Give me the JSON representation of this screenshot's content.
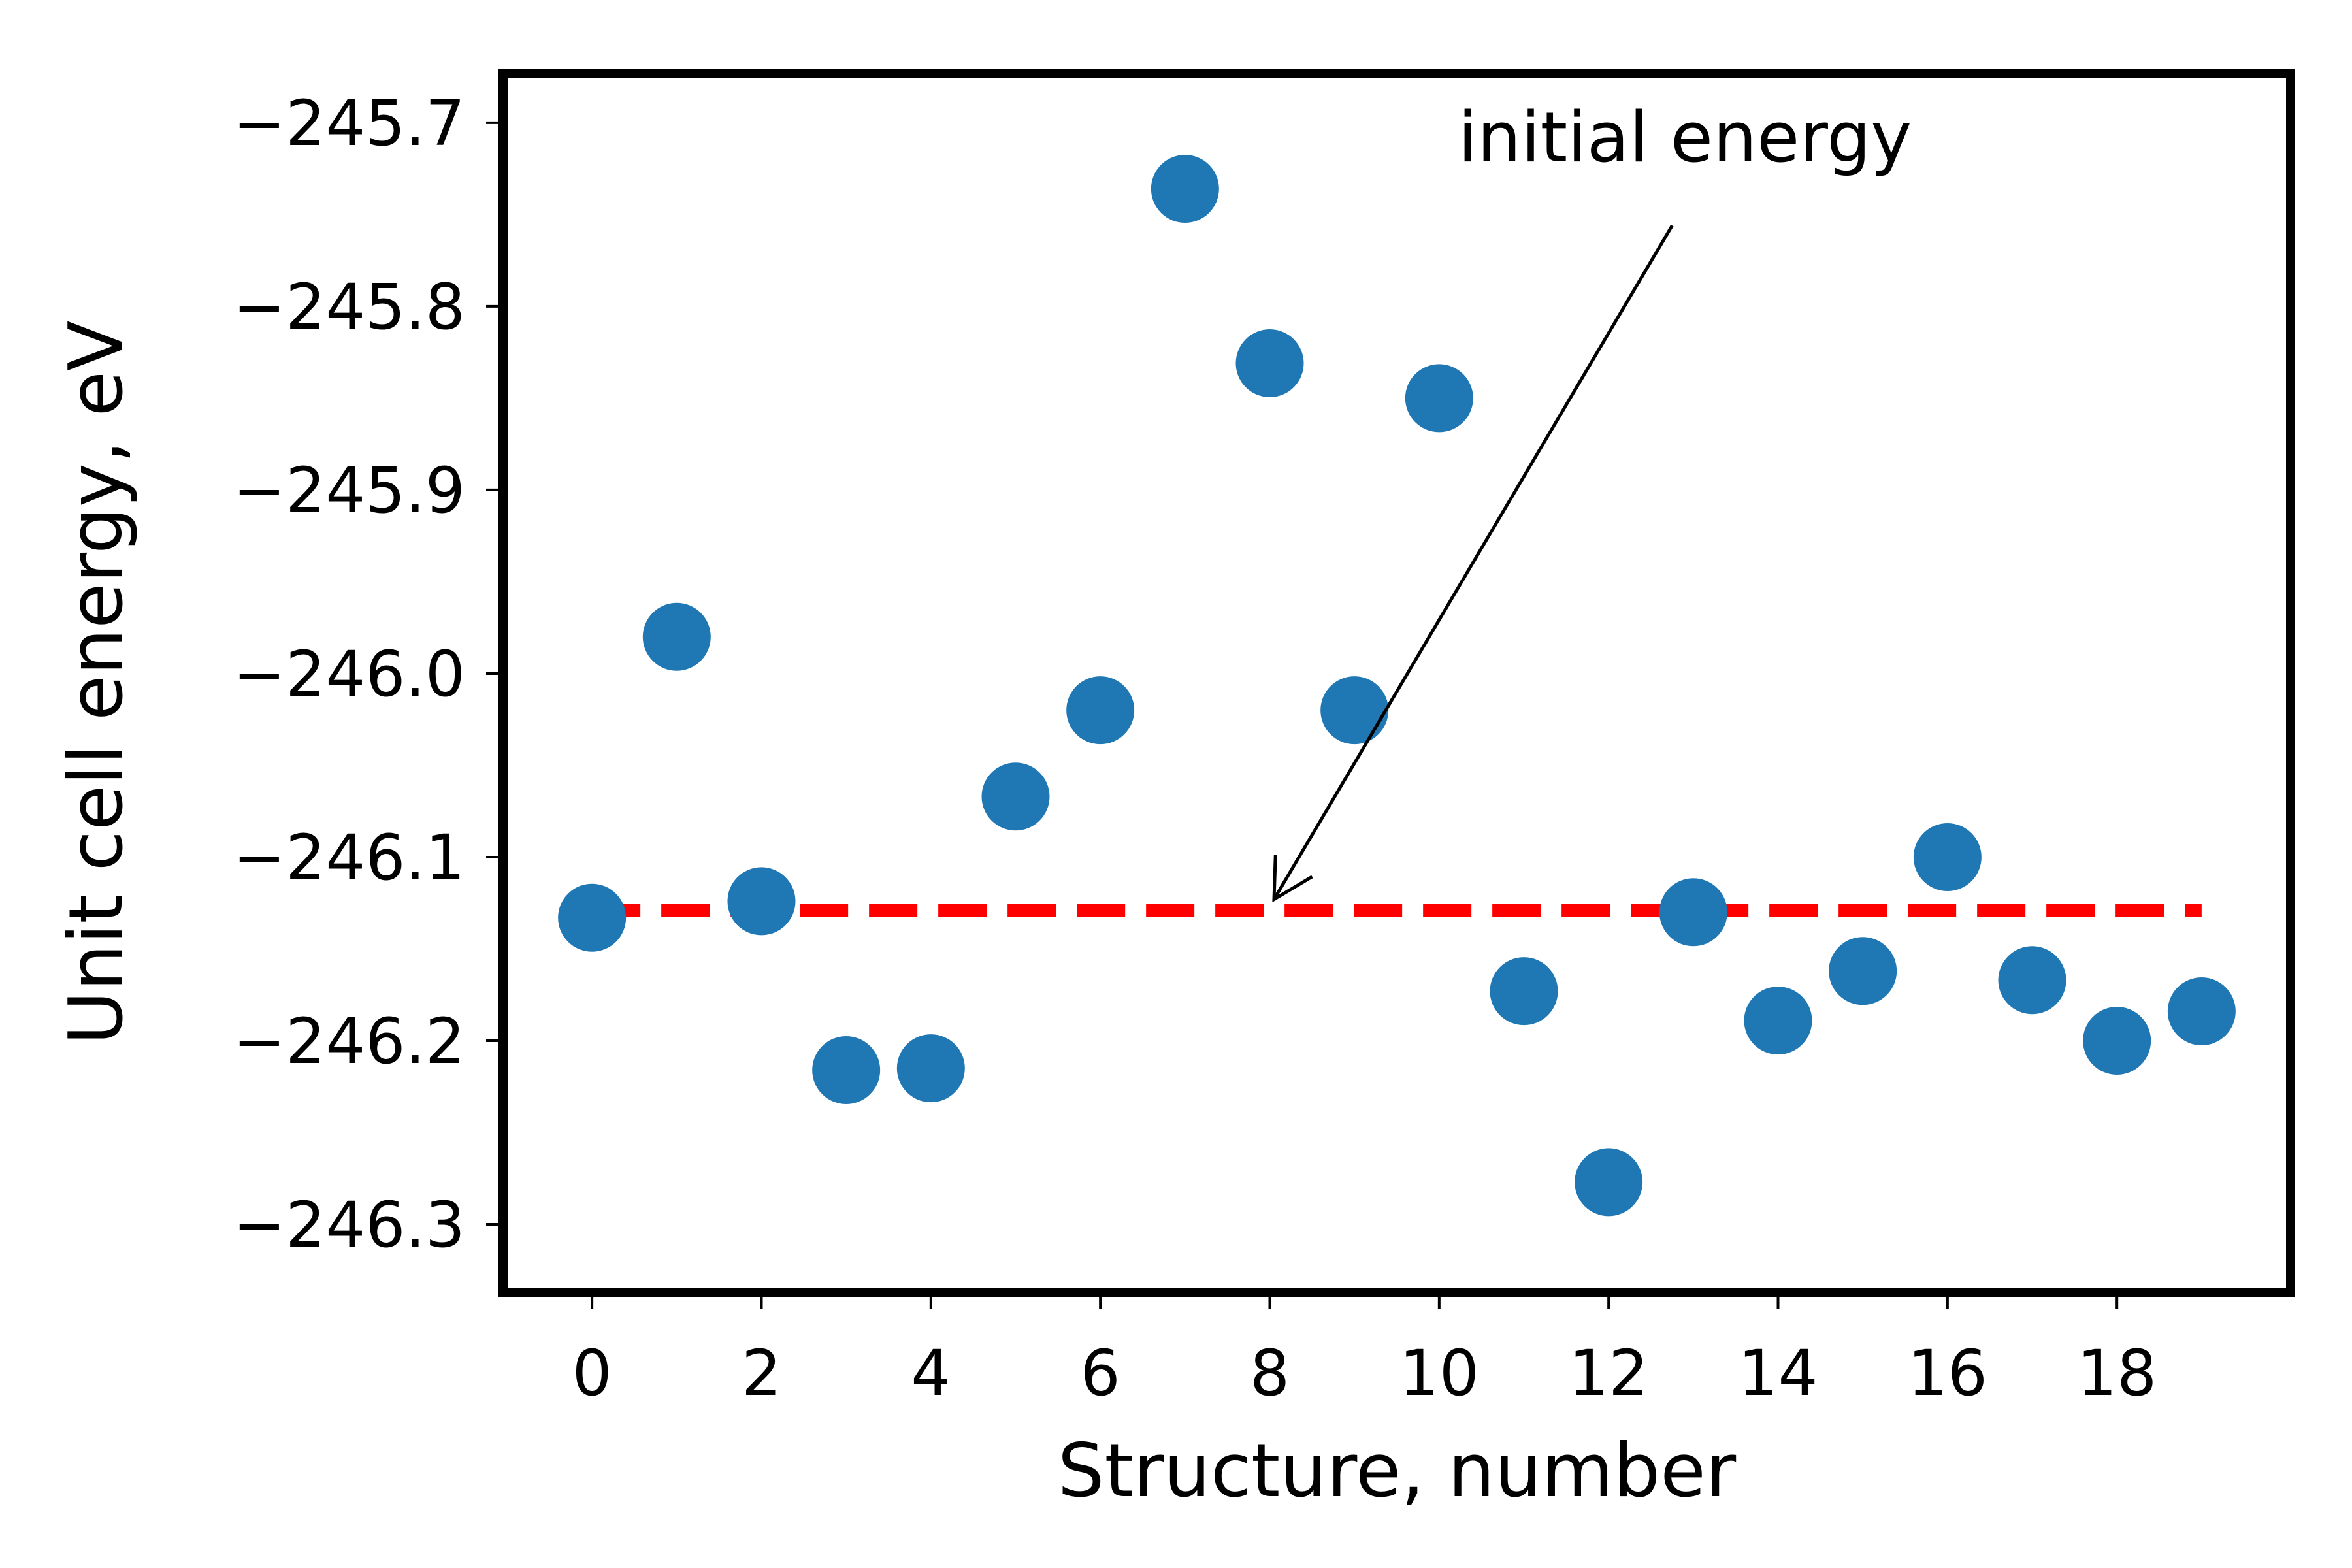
{
  "chart_data": {
    "type": "scatter",
    "xlabel": "Structure, number",
    "ylabel": "Unit cell energy, eV",
    "xlim": [
      -1.05,
      20.05
    ],
    "ylim": [
      -246.337,
      -245.673
    ],
    "xticks": [
      0,
      2,
      4,
      6,
      8,
      10,
      12,
      14,
      16,
      18
    ],
    "xtick_labels": [
      "0",
      "2",
      "4",
      "6",
      "8",
      "10",
      "12",
      "14",
      "16",
      "18"
    ],
    "yticks": [
      -245.7,
      -245.8,
      -245.9,
      -246.0,
      -246.1,
      -246.2,
      -246.3
    ],
    "ytick_labels": [
      "−245.7",
      "−245.8",
      "−245.9",
      "−246.0",
      "−246.1",
      "−246.2",
      "−246.3"
    ],
    "grid": false,
    "series": [
      {
        "kind": "scatter",
        "color": "#1f77b4",
        "x": [
          0,
          1,
          2,
          3,
          4,
          5,
          6,
          7,
          8,
          9,
          10,
          11,
          12,
          13,
          14,
          15,
          16,
          17,
          18,
          19
        ],
        "y": [
          -246.133,
          -245.98,
          -246.124,
          -246.216,
          -246.215,
          -246.067,
          -246.02,
          -245.736,
          -245.831,
          -246.02,
          -245.85,
          -246.173,
          -246.277,
          -246.13,
          -246.189,
          -246.162,
          -246.1,
          -246.167,
          -246.2,
          -246.184
        ]
      },
      {
        "kind": "hline",
        "color": "#ff0000",
        "style": "dashed",
        "y": -246.129,
        "x_from": 0,
        "x_to": 19
      }
    ],
    "annotations": [
      {
        "text": "initial energy",
        "text_at": [
          12.9,
          -245.721
        ],
        "arrow_from": [
          12.75,
          -245.756
        ],
        "arrow_to": [
          8.05,
          -246.123
        ]
      }
    ]
  }
}
